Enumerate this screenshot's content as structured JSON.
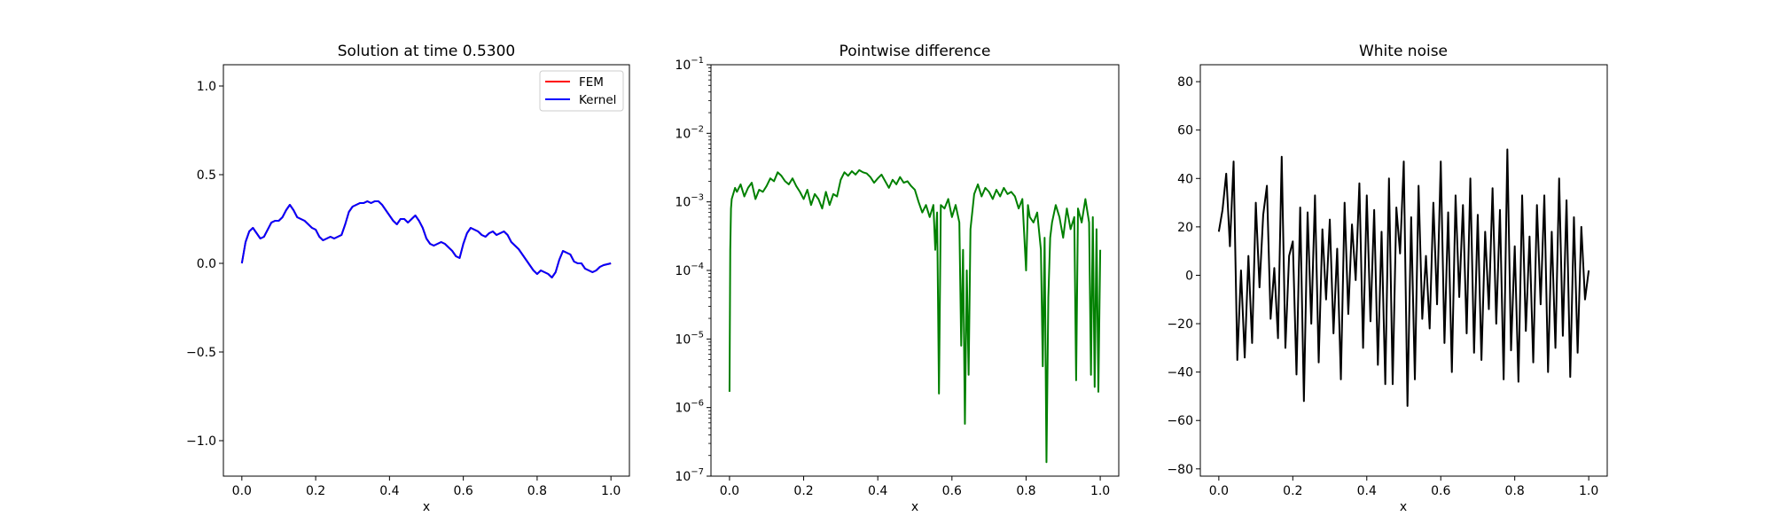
{
  "chart_data": [
    {
      "type": "line",
      "title": "Solution at time 0.5300",
      "xlabel": "x",
      "ylabel": "",
      "xlim": [
        -0.05,
        1.05
      ],
      "ylim": [
        -1.2,
        1.12
      ],
      "xticks": [
        0.0,
        0.2,
        0.4,
        0.6,
        0.8,
        1.0
      ],
      "xtick_labels": [
        "0.0",
        "0.2",
        "0.4",
        "0.6",
        "0.8",
        "1.0"
      ],
      "yticks": [
        -1.0,
        -0.5,
        0.0,
        0.5,
        1.0
      ],
      "ytick_labels": [
        "−1.0",
        "−0.5",
        "0.0",
        "0.5",
        "1.0"
      ],
      "legend": {
        "position": "top-right",
        "entries": [
          "FEM",
          "Kernel"
        ]
      },
      "series": [
        {
          "name": "FEM",
          "color": "#ff0000",
          "x": [
            0,
            0.01,
            0.02,
            0.03,
            0.04,
            0.05,
            0.06,
            0.07,
            0.08,
            0.09,
            0.1,
            0.11,
            0.12,
            0.13,
            0.14,
            0.15,
            0.16,
            0.17,
            0.18,
            0.19,
            0.2,
            0.21,
            0.22,
            0.23,
            0.24,
            0.25,
            0.26,
            0.27,
            0.28,
            0.29,
            0.3,
            0.31,
            0.32,
            0.33,
            0.34,
            0.35,
            0.36,
            0.37,
            0.38,
            0.39,
            0.4,
            0.41,
            0.42,
            0.43,
            0.44,
            0.45,
            0.46,
            0.47,
            0.48,
            0.49,
            0.5,
            0.51,
            0.52,
            0.53,
            0.54,
            0.55,
            0.56,
            0.57,
            0.58,
            0.59,
            0.6,
            0.61,
            0.62,
            0.63,
            0.64,
            0.65,
            0.66,
            0.67,
            0.68,
            0.69,
            0.7,
            0.71,
            0.72,
            0.73,
            0.74,
            0.75,
            0.76,
            0.77,
            0.78,
            0.79,
            0.8,
            0.81,
            0.82,
            0.83,
            0.84,
            0.85,
            0.86,
            0.87,
            0.88,
            0.89,
            0.9,
            0.91,
            0.92,
            0.93,
            0.94,
            0.95,
            0.96,
            0.97,
            0.98,
            0.99,
            1.0
          ],
          "y": [
            0.0,
            0.12,
            0.18,
            0.2,
            0.17,
            0.14,
            0.15,
            0.19,
            0.23,
            0.24,
            0.24,
            0.26,
            0.3,
            0.33,
            0.3,
            0.26,
            0.25,
            0.24,
            0.22,
            0.2,
            0.19,
            0.15,
            0.13,
            0.14,
            0.15,
            0.14,
            0.15,
            0.16,
            0.22,
            0.29,
            0.32,
            0.33,
            0.34,
            0.34,
            0.35,
            0.34,
            0.35,
            0.35,
            0.33,
            0.3,
            0.27,
            0.24,
            0.22,
            0.25,
            0.25,
            0.23,
            0.25,
            0.27,
            0.24,
            0.2,
            0.14,
            0.11,
            0.1,
            0.11,
            0.12,
            0.11,
            0.09,
            0.07,
            0.04,
            0.03,
            0.11,
            0.17,
            0.2,
            0.19,
            0.18,
            0.16,
            0.15,
            0.17,
            0.18,
            0.16,
            0.17,
            0.18,
            0.16,
            0.12,
            0.1,
            0.08,
            0.05,
            0.02,
            -0.01,
            -0.04,
            -0.06,
            -0.04,
            -0.05,
            -0.06,
            -0.08,
            -0.05,
            0.02,
            0.07,
            0.06,
            0.05,
            0.01,
            0.0,
            0.0,
            -0.03,
            -0.04,
            -0.05,
            -0.04,
            -0.02,
            -0.01,
            -0.005,
            0.0
          ]
        },
        {
          "name": "Kernel",
          "color": "#0000ff",
          "x": [
            0,
            0.01,
            0.02,
            0.03,
            0.04,
            0.05,
            0.06,
            0.07,
            0.08,
            0.09,
            0.1,
            0.11,
            0.12,
            0.13,
            0.14,
            0.15,
            0.16,
            0.17,
            0.18,
            0.19,
            0.2,
            0.21,
            0.22,
            0.23,
            0.24,
            0.25,
            0.26,
            0.27,
            0.28,
            0.29,
            0.3,
            0.31,
            0.32,
            0.33,
            0.34,
            0.35,
            0.36,
            0.37,
            0.38,
            0.39,
            0.4,
            0.41,
            0.42,
            0.43,
            0.44,
            0.45,
            0.46,
            0.47,
            0.48,
            0.49,
            0.5,
            0.51,
            0.52,
            0.53,
            0.54,
            0.55,
            0.56,
            0.57,
            0.58,
            0.59,
            0.6,
            0.61,
            0.62,
            0.63,
            0.64,
            0.65,
            0.66,
            0.67,
            0.68,
            0.69,
            0.7,
            0.71,
            0.72,
            0.73,
            0.74,
            0.75,
            0.76,
            0.77,
            0.78,
            0.79,
            0.8,
            0.81,
            0.82,
            0.83,
            0.84,
            0.85,
            0.86,
            0.87,
            0.88,
            0.89,
            0.9,
            0.91,
            0.92,
            0.93,
            0.94,
            0.95,
            0.96,
            0.97,
            0.98,
            0.99,
            1.0
          ],
          "y": [
            0.0,
            0.12,
            0.18,
            0.2,
            0.17,
            0.14,
            0.15,
            0.19,
            0.23,
            0.24,
            0.24,
            0.26,
            0.3,
            0.33,
            0.3,
            0.26,
            0.25,
            0.24,
            0.22,
            0.2,
            0.19,
            0.15,
            0.13,
            0.14,
            0.15,
            0.14,
            0.15,
            0.16,
            0.22,
            0.29,
            0.32,
            0.33,
            0.34,
            0.34,
            0.35,
            0.34,
            0.35,
            0.35,
            0.33,
            0.3,
            0.27,
            0.24,
            0.22,
            0.25,
            0.25,
            0.23,
            0.25,
            0.27,
            0.24,
            0.2,
            0.14,
            0.11,
            0.1,
            0.11,
            0.12,
            0.11,
            0.09,
            0.07,
            0.04,
            0.03,
            0.11,
            0.17,
            0.2,
            0.19,
            0.18,
            0.16,
            0.15,
            0.17,
            0.18,
            0.16,
            0.17,
            0.18,
            0.16,
            0.12,
            0.1,
            0.08,
            0.05,
            0.02,
            -0.01,
            -0.04,
            -0.06,
            -0.04,
            -0.05,
            -0.06,
            -0.08,
            -0.05,
            0.02,
            0.07,
            0.06,
            0.05,
            0.01,
            0.0,
            0.0,
            -0.03,
            -0.04,
            -0.05,
            -0.04,
            -0.02,
            -0.01,
            -0.005,
            0.0
          ]
        }
      ]
    },
    {
      "type": "line",
      "title": "Pointwise difference",
      "xlabel": "x",
      "ylabel": "",
      "yscale": "log",
      "xlim": [
        -0.05,
        1.05
      ],
      "ylim": [
        1e-07,
        0.1
      ],
      "xticks": [
        0.0,
        0.2,
        0.4,
        0.6,
        0.8,
        1.0
      ],
      "xtick_labels": [
        "0.0",
        "0.2",
        "0.4",
        "0.6",
        "0.8",
        "1.0"
      ],
      "yticks": [
        1e-07,
        1e-06,
        1e-05,
        0.0001,
        0.001,
        0.01,
        0.1
      ],
      "ytick_bases": [
        "10",
        "10",
        "10",
        "10",
        "10",
        "10",
        "10"
      ],
      "ytick_exponents": [
        "−7",
        "−6",
        "−5",
        "−4",
        "−3",
        "−2",
        "−1"
      ],
      "series": [
        {
          "color": "#008000",
          "x": [
            0.0,
            0.002,
            0.004,
            0.006,
            0.01,
            0.015,
            0.02,
            0.03,
            0.04,
            0.05,
            0.06,
            0.07,
            0.08,
            0.09,
            0.1,
            0.11,
            0.12,
            0.13,
            0.14,
            0.15,
            0.16,
            0.17,
            0.18,
            0.19,
            0.2,
            0.21,
            0.22,
            0.23,
            0.24,
            0.25,
            0.26,
            0.27,
            0.28,
            0.29,
            0.3,
            0.31,
            0.32,
            0.33,
            0.34,
            0.35,
            0.36,
            0.37,
            0.38,
            0.39,
            0.4,
            0.41,
            0.42,
            0.43,
            0.44,
            0.45,
            0.46,
            0.47,
            0.48,
            0.49,
            0.5,
            0.51,
            0.52,
            0.53,
            0.54,
            0.55,
            0.555,
            0.56,
            0.565,
            0.57,
            0.58,
            0.59,
            0.6,
            0.61,
            0.62,
            0.625,
            0.63,
            0.635,
            0.64,
            0.645,
            0.65,
            0.66,
            0.67,
            0.68,
            0.69,
            0.7,
            0.71,
            0.72,
            0.73,
            0.74,
            0.75,
            0.76,
            0.77,
            0.78,
            0.79,
            0.8,
            0.805,
            0.81,
            0.82,
            0.83,
            0.84,
            0.845,
            0.85,
            0.855,
            0.86,
            0.865,
            0.87,
            0.88,
            0.89,
            0.9,
            0.91,
            0.92,
            0.93,
            0.935,
            0.94,
            0.95,
            0.96,
            0.97,
            0.975,
            0.98,
            0.985,
            0.99,
            0.995,
            1.0
          ],
          "y": [
            1.7e-06,
            0.0002,
            0.0008,
            0.0011,
            0.0013,
            0.0016,
            0.0014,
            0.0018,
            0.0012,
            0.0016,
            0.0019,
            0.0011,
            0.0015,
            0.0014,
            0.0017,
            0.0022,
            0.002,
            0.0027,
            0.0024,
            0.002,
            0.0018,
            0.0022,
            0.0017,
            0.0014,
            0.0011,
            0.0015,
            0.0009,
            0.0013,
            0.0011,
            0.0008,
            0.0014,
            0.0009,
            0.0013,
            0.0012,
            0.0021,
            0.0027,
            0.0024,
            0.0028,
            0.0025,
            0.0029,
            0.0027,
            0.0026,
            0.0023,
            0.0019,
            0.0022,
            0.0025,
            0.002,
            0.0016,
            0.0021,
            0.0018,
            0.0023,
            0.0019,
            0.002,
            0.0017,
            0.0015,
            0.001,
            0.0007,
            0.0009,
            0.0006,
            0.0009,
            0.0002,
            0.0007,
            1.6e-06,
            0.0009,
            0.0008,
            0.0011,
            0.0006,
            0.0009,
            0.0005,
            8e-06,
            0.0002,
            5.8e-07,
            0.0001,
            3e-06,
            0.0004,
            0.0013,
            0.0018,
            0.0012,
            0.0016,
            0.0014,
            0.0011,
            0.0015,
            0.0012,
            0.0016,
            0.0013,
            0.0014,
            0.0012,
            0.0008,
            0.0011,
            0.0001,
            0.0009,
            0.0006,
            0.0005,
            0.0007,
            0.0002,
            4e-06,
            0.0003,
            1.6e-07,
            4e-05,
            0.0003,
            0.0005,
            0.0009,
            0.0006,
            0.0003,
            0.0008,
            0.0004,
            0.0006,
            2.5e-06,
            0.0008,
            0.0005,
            0.0011,
            0.0005,
            3e-06,
            0.0006,
            2e-06,
            0.0004,
            1.7e-06,
            0.0002
          ]
        }
      ]
    },
    {
      "type": "line",
      "title": "White noise",
      "xlabel": "x",
      "ylabel": "",
      "xlim": [
        -0.05,
        1.05
      ],
      "ylim": [
        -83,
        87
      ],
      "xticks": [
        0.0,
        0.2,
        0.4,
        0.6,
        0.8,
        1.0
      ],
      "xtick_labels": [
        "0.0",
        "0.2",
        "0.4",
        "0.6",
        "0.8",
        "1.0"
      ],
      "yticks": [
        -80,
        -60,
        -40,
        -20,
        0,
        20,
        40,
        60,
        80
      ],
      "ytick_labels": [
        "−80",
        "−60",
        "−40",
        "−20",
        "0",
        "20",
        "40",
        "60",
        "80"
      ],
      "series": [
        {
          "color": "#000000",
          "x": [
            0,
            0.01,
            0.02,
            0.03,
            0.04,
            0.05,
            0.06,
            0.07,
            0.08,
            0.09,
            0.1,
            0.11,
            0.12,
            0.13,
            0.14,
            0.15,
            0.16,
            0.17,
            0.18,
            0.19,
            0.2,
            0.21,
            0.22,
            0.23,
            0.24,
            0.25,
            0.26,
            0.27,
            0.28,
            0.29,
            0.3,
            0.31,
            0.32,
            0.33,
            0.34,
            0.35,
            0.36,
            0.37,
            0.38,
            0.39,
            0.4,
            0.41,
            0.42,
            0.43,
            0.44,
            0.45,
            0.46,
            0.47,
            0.48,
            0.49,
            0.5,
            0.51,
            0.52,
            0.53,
            0.54,
            0.55,
            0.56,
            0.57,
            0.58,
            0.59,
            0.6,
            0.61,
            0.62,
            0.63,
            0.64,
            0.65,
            0.66,
            0.67,
            0.68,
            0.69,
            0.7,
            0.71,
            0.72,
            0.73,
            0.74,
            0.75,
            0.76,
            0.77,
            0.78,
            0.79,
            0.8,
            0.81,
            0.82,
            0.83,
            0.84,
            0.85,
            0.86,
            0.87,
            0.88,
            0.89,
            0.9,
            0.91,
            0.92,
            0.93,
            0.94,
            0.95,
            0.96,
            0.97,
            0.98,
            0.99,
            1.0
          ],
          "y": [
            18,
            27,
            42,
            12,
            47,
            -35,
            2,
            -34,
            8,
            -28,
            30,
            -5,
            25,
            37,
            -18,
            3,
            -26,
            49,
            -30,
            8,
            14,
            -41,
            28,
            -52,
            26,
            -20,
            33,
            -36,
            19,
            -10,
            23,
            -24,
            11,
            -43,
            30,
            -16,
            21,
            -2,
            38,
            -30,
            33,
            -19,
            27,
            -37,
            18,
            -45,
            40,
            -45,
            28,
            9,
            47,
            -54,
            24,
            -43,
            37,
            -18,
            8,
            -22,
            30,
            -12,
            47,
            -28,
            26,
            -40,
            33,
            -9,
            29,
            -24,
            40,
            -32,
            25,
            -35,
            18,
            -14,
            36,
            -20,
            27,
            -43,
            52,
            -31,
            12,
            -44,
            33,
            -23,
            16,
            -36,
            29,
            -12,
            33,
            -40,
            18,
            -30,
            40,
            -25,
            31,
            -42,
            24,
            -32,
            20,
            -10,
            2
          ]
        }
      ]
    }
  ]
}
